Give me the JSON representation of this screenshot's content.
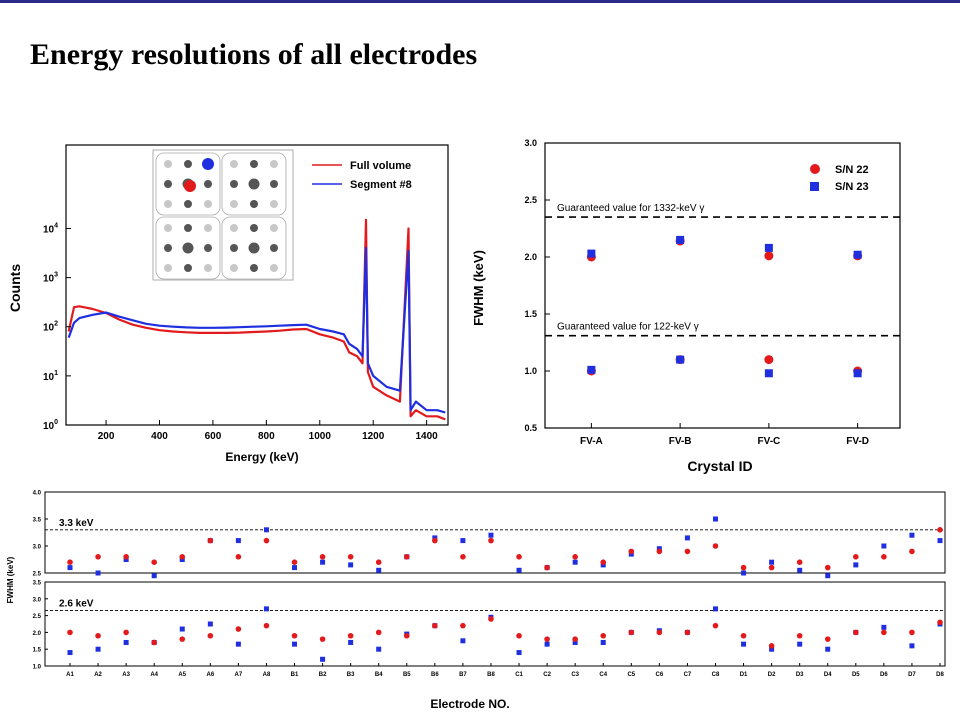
{
  "page": {
    "title": "Energy resolutions of all electrodes"
  },
  "colors": {
    "series_a": "#e31a1c",
    "series_b": "#1f2fe0",
    "accent": "#2a2a8c"
  },
  "chart_data": [
    {
      "type": "line",
      "xlabel": "Energy (keV)",
      "ylabel": "Counts",
      "xlim": [
        50,
        1480
      ],
      "ylim": [
        1,
        500000
      ],
      "yscale": "log",
      "x_ticks": [
        "200",
        "400",
        "600",
        "800",
        "1000",
        "1200",
        "1400"
      ],
      "y_ticks": [
        "10",
        "10",
        "10",
        "10",
        "10"
      ],
      "y_tick_exponents": [
        "0",
        "1",
        "2",
        "3",
        "4"
      ],
      "legend": [
        "Full volume",
        "Segment #8"
      ],
      "legend_position": "top-right",
      "series": [
        {
          "name": "Full volume",
          "x": [
            60,
            80,
            100,
            150,
            200,
            250,
            300,
            350,
            400,
            450,
            500,
            550,
            600,
            650,
            700,
            750,
            800,
            850,
            900,
            950,
            1000,
            1050,
            1090,
            1110,
            1140,
            1160,
            1173,
            1180,
            1200,
            1250,
            1300,
            1332,
            1340,
            1360,
            1400,
            1440,
            1470
          ],
          "y": [
            80,
            250,
            260,
            230,
            190,
            140,
            110,
            95,
            85,
            80,
            77,
            75,
            75,
            75,
            76,
            78,
            80,
            83,
            88,
            90,
            70,
            60,
            50,
            30,
            25,
            18,
            15000,
            12,
            6,
            4,
            3,
            10000,
            1.5,
            2,
            1.5,
            1.5,
            1.3
          ]
        },
        {
          "name": "Segment #8",
          "x": [
            60,
            80,
            100,
            150,
            200,
            250,
            300,
            350,
            400,
            450,
            500,
            550,
            600,
            650,
            700,
            750,
            800,
            850,
            900,
            950,
            1000,
            1050,
            1090,
            1110,
            1140,
            1160,
            1173,
            1180,
            1200,
            1250,
            1300,
            1332,
            1340,
            1360,
            1400,
            1440,
            1470
          ],
          "y": [
            60,
            120,
            150,
            175,
            195,
            160,
            135,
            115,
            105,
            100,
            97,
            95,
            95,
            96,
            98,
            100,
            102,
            105,
            108,
            110,
            90,
            80,
            70,
            45,
            35,
            25,
            4000,
            18,
            10,
            6,
            5,
            3500,
            2,
            3,
            2,
            2,
            1.8
          ]
        }
      ]
    },
    {
      "type": "scatter",
      "xlabel": "Crystal ID",
      "ylabel": "FWHM (keV)",
      "categories": [
        "FV-A",
        "FV-B",
        "FV-C",
        "FV-D"
      ],
      "ylim": [
        0.5,
        3.0
      ],
      "y_ticks": [
        "0.5",
        "1.0",
        "1.5",
        "2.0",
        "2.5",
        "3.0"
      ],
      "legend_position": "top-right",
      "series": [
        {
          "name": "S/N 22",
          "low": [
            1.0,
            1.1,
            1.1,
            1.0
          ],
          "high": [
            2.0,
            2.14,
            2.01,
            2.01
          ]
        },
        {
          "name": "S/N 23",
          "low": [
            1.01,
            1.1,
            0.98,
            0.98
          ],
          "high": [
            2.03,
            2.15,
            2.08,
            2.02
          ]
        }
      ],
      "reference_lines": [
        {
          "label": "Guaranteed value for 1332-keV γ",
          "value": 2.35
        },
        {
          "label": "Guaranteed value for 122-keV γ",
          "value": 1.31
        }
      ]
    },
    {
      "type": "scatter",
      "xlabel": "Electrode NO.",
      "ylabel": "FWHM (keV)",
      "categories": [
        "A1",
        "A2",
        "A3",
        "A4",
        "A5",
        "A6",
        "A7",
        "A8",
        "B1",
        "B2",
        "B3",
        "B4",
        "B5",
        "B6",
        "B7",
        "B8",
        "C1",
        "C2",
        "C3",
        "C4",
        "C5",
        "C6",
        "C7",
        "C8",
        "D1",
        "D2",
        "D3",
        "D4",
        "D5",
        "D6",
        "D7",
        "D8"
      ],
      "ylim_top": [
        2.5,
        4.0
      ],
      "ylim_bottom": [
        1.0,
        3.5
      ],
      "y_ticks_top": [
        "2.5",
        "3.0",
        "3.5",
        "4.0"
      ],
      "y_ticks_bottom": [
        "1.0",
        "1.5",
        "2.0",
        "2.5",
        "3.0",
        "3.5"
      ],
      "reference_lines": [
        {
          "label": "3.3 keV",
          "value": 3.3
        },
        {
          "label": "2.6 keV",
          "value": 2.65
        }
      ],
      "series": [
        {
          "name": "red",
          "high": [
            2.7,
            2.8,
            2.8,
            2.7,
            2.8,
            3.1,
            2.8,
            3.1,
            2.7,
            2.8,
            2.8,
            2.7,
            2.8,
            3.1,
            2.8,
            3.1,
            2.8,
            2.6,
            2.8,
            2.7,
            2.9,
            2.9,
            2.9,
            3.0,
            2.6,
            2.6,
            2.7,
            2.6,
            2.8,
            2.8,
            2.9,
            3.3
          ],
          "low": [
            2.0,
            1.9,
            2.0,
            1.7,
            1.8,
            1.9,
            2.1,
            2.2,
            1.9,
            1.8,
            1.9,
            2.0,
            1.9,
            2.2,
            2.2,
            2.4,
            1.9,
            1.8,
            1.8,
            1.9,
            2.0,
            2.0,
            2.0,
            2.2,
            1.9,
            1.6,
            1.9,
            1.8,
            2.0,
            2.0,
            2.0,
            2.3
          ]
        },
        {
          "name": "blue",
          "high": [
            2.6,
            2.5,
            2.75,
            2.45,
            2.75,
            3.1,
            3.1,
            3.3,
            2.6,
            2.7,
            2.65,
            2.55,
            2.8,
            3.15,
            3.1,
            3.2,
            2.55,
            2.6,
            2.7,
            2.65,
            2.85,
            2.95,
            3.15,
            3.5,
            2.5,
            2.7,
            2.55,
            2.45,
            2.65,
            3.0,
            3.2,
            3.1
          ],
          "low": [
            1.4,
            1.5,
            1.7,
            1.7,
            2.1,
            2.25,
            1.65,
            2.7,
            1.65,
            1.2,
            1.7,
            1.5,
            1.95,
            2.2,
            1.75,
            2.45,
            1.4,
            1.65,
            1.7,
            1.7,
            2.0,
            2.05,
            2.0,
            2.7,
            1.65,
            1.5,
            1.65,
            1.5,
            2.0,
            2.15,
            1.6,
            2.25
          ]
        }
      ]
    }
  ]
}
